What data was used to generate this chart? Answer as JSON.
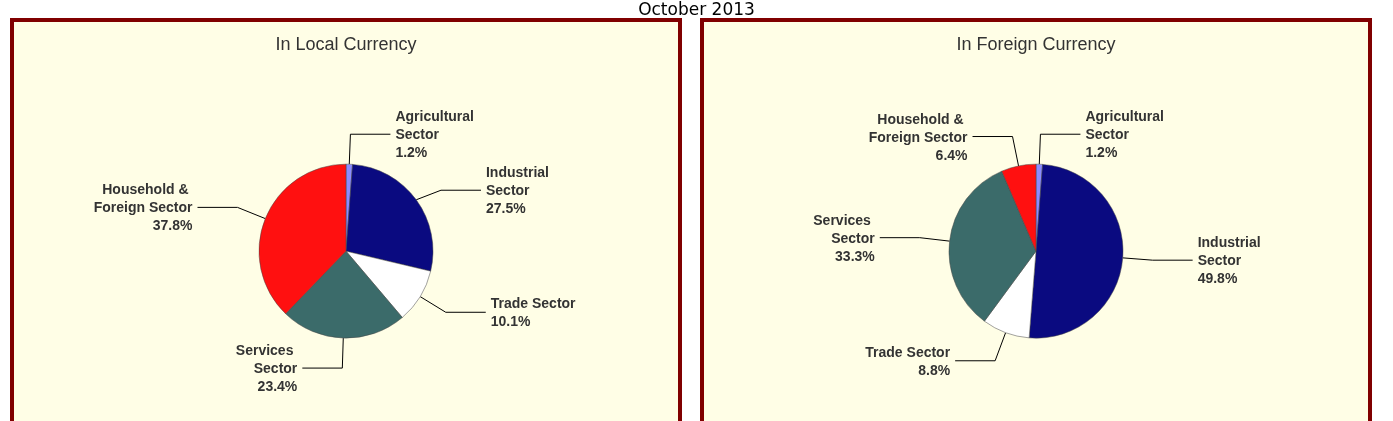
{
  "chart_data": [
    {
      "type": "pie",
      "title": "In Local Currency",
      "annotations": [
        "October 2013"
      ],
      "categories": [
        "Agricultural Sector",
        "Industrial Sector",
        "Trade Sector",
        "Services Sector",
        "Household & Foreign Sector"
      ],
      "values": [
        1.2,
        27.5,
        10.1,
        23.4,
        37.8
      ],
      "value_labels": [
        "1.2%",
        "27.5%",
        "10.1%",
        "23.4%",
        "37.8%"
      ],
      "colors": [
        "#8c8cff",
        "#0a0a80",
        "#ffffff",
        "#3b6b6a",
        "#ff1010"
      ],
      "legend": false
    },
    {
      "type": "pie",
      "title": "In Foreign Currency",
      "categories": [
        "Agricultural Sector",
        "Industrial Sector",
        "Trade Sector",
        "Services Sector",
        "Household & Foreign Sector"
      ],
      "values": [
        1.2,
        49.8,
        8.8,
        33.3,
        6.4
      ],
      "value_labels": [
        "1.2%",
        "49.8%",
        "8.8%",
        "33.3%",
        "6.4%"
      ],
      "colors": [
        "#8c8cff",
        "#0a0a80",
        "#ffffff",
        "#3b6b6a",
        "#ff1010"
      ],
      "legend": false
    }
  ]
}
